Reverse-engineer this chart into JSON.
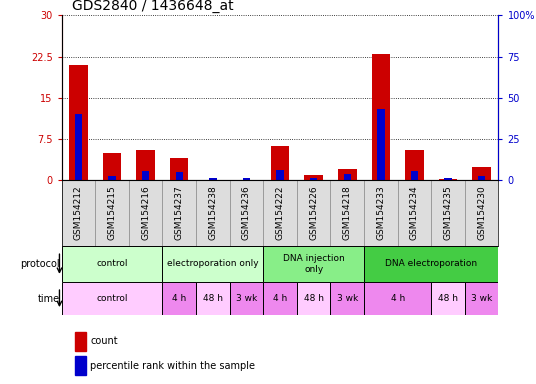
{
  "title": "GDS2840 / 1436648_at",
  "samples": [
    "GSM154212",
    "GSM154215",
    "GSM154216",
    "GSM154237",
    "GSM154238",
    "GSM154236",
    "GSM154222",
    "GSM154226",
    "GSM154218",
    "GSM154233",
    "GSM154234",
    "GSM154235",
    "GSM154230"
  ],
  "red_values": [
    21.0,
    5.0,
    5.5,
    4.0,
    0.1,
    0.1,
    6.2,
    1.0,
    2.0,
    23.0,
    5.5,
    0.2,
    2.5
  ],
  "blue_percentile": [
    40.0,
    3.0,
    6.0,
    5.0,
    1.5,
    1.5,
    6.5,
    1.5,
    4.0,
    43.0,
    6.0,
    1.5,
    3.0
  ],
  "ylim_left": [
    0,
    30
  ],
  "ylim_right": [
    0,
    100
  ],
  "yticks_left": [
    0,
    7.5,
    15,
    22.5,
    30
  ],
  "yticks_right": [
    0,
    25,
    50,
    75,
    100
  ],
  "ytick_labels_left": [
    "0",
    "7.5",
    "15",
    "22.5",
    "30"
  ],
  "ytick_labels_right": [
    "0",
    "25",
    "50",
    "75",
    "100%"
  ],
  "protocol_groups": [
    {
      "label": "control",
      "start": 0,
      "end": 3,
      "color": "#ccffcc"
    },
    {
      "label": "electroporation only",
      "start": 3,
      "end": 6,
      "color": "#ccffcc"
    },
    {
      "label": "DNA injection\nonly",
      "start": 6,
      "end": 9,
      "color": "#88ee88"
    },
    {
      "label": "DNA electroporation",
      "start": 9,
      "end": 13,
      "color": "#44cc44"
    }
  ],
  "time_groups": [
    {
      "label": "control",
      "start": 0,
      "end": 3,
      "color": "#ffccff"
    },
    {
      "label": "4 h",
      "start": 3,
      "end": 4,
      "color": "#ee88ee"
    },
    {
      "label": "48 h",
      "start": 4,
      "end": 5,
      "color": "#ffccff"
    },
    {
      "label": "3 wk",
      "start": 5,
      "end": 6,
      "color": "#ee88ee"
    },
    {
      "label": "4 h",
      "start": 6,
      "end": 7,
      "color": "#ee88ee"
    },
    {
      "label": "48 h",
      "start": 7,
      "end": 8,
      "color": "#ffccff"
    },
    {
      "label": "3 wk",
      "start": 8,
      "end": 9,
      "color": "#ee88ee"
    },
    {
      "label": "4 h",
      "start": 9,
      "end": 11,
      "color": "#ee88ee"
    },
    {
      "label": "48 h",
      "start": 11,
      "end": 12,
      "color": "#ffccff"
    },
    {
      "label": "3 wk",
      "start": 12,
      "end": 13,
      "color": "#ee88ee"
    }
  ],
  "red_color": "#cc0000",
  "blue_color": "#0000cc",
  "title_fontsize": 10,
  "tick_fontsize": 7,
  "annot_fontsize": 6.5,
  "legend_fontsize": 7
}
